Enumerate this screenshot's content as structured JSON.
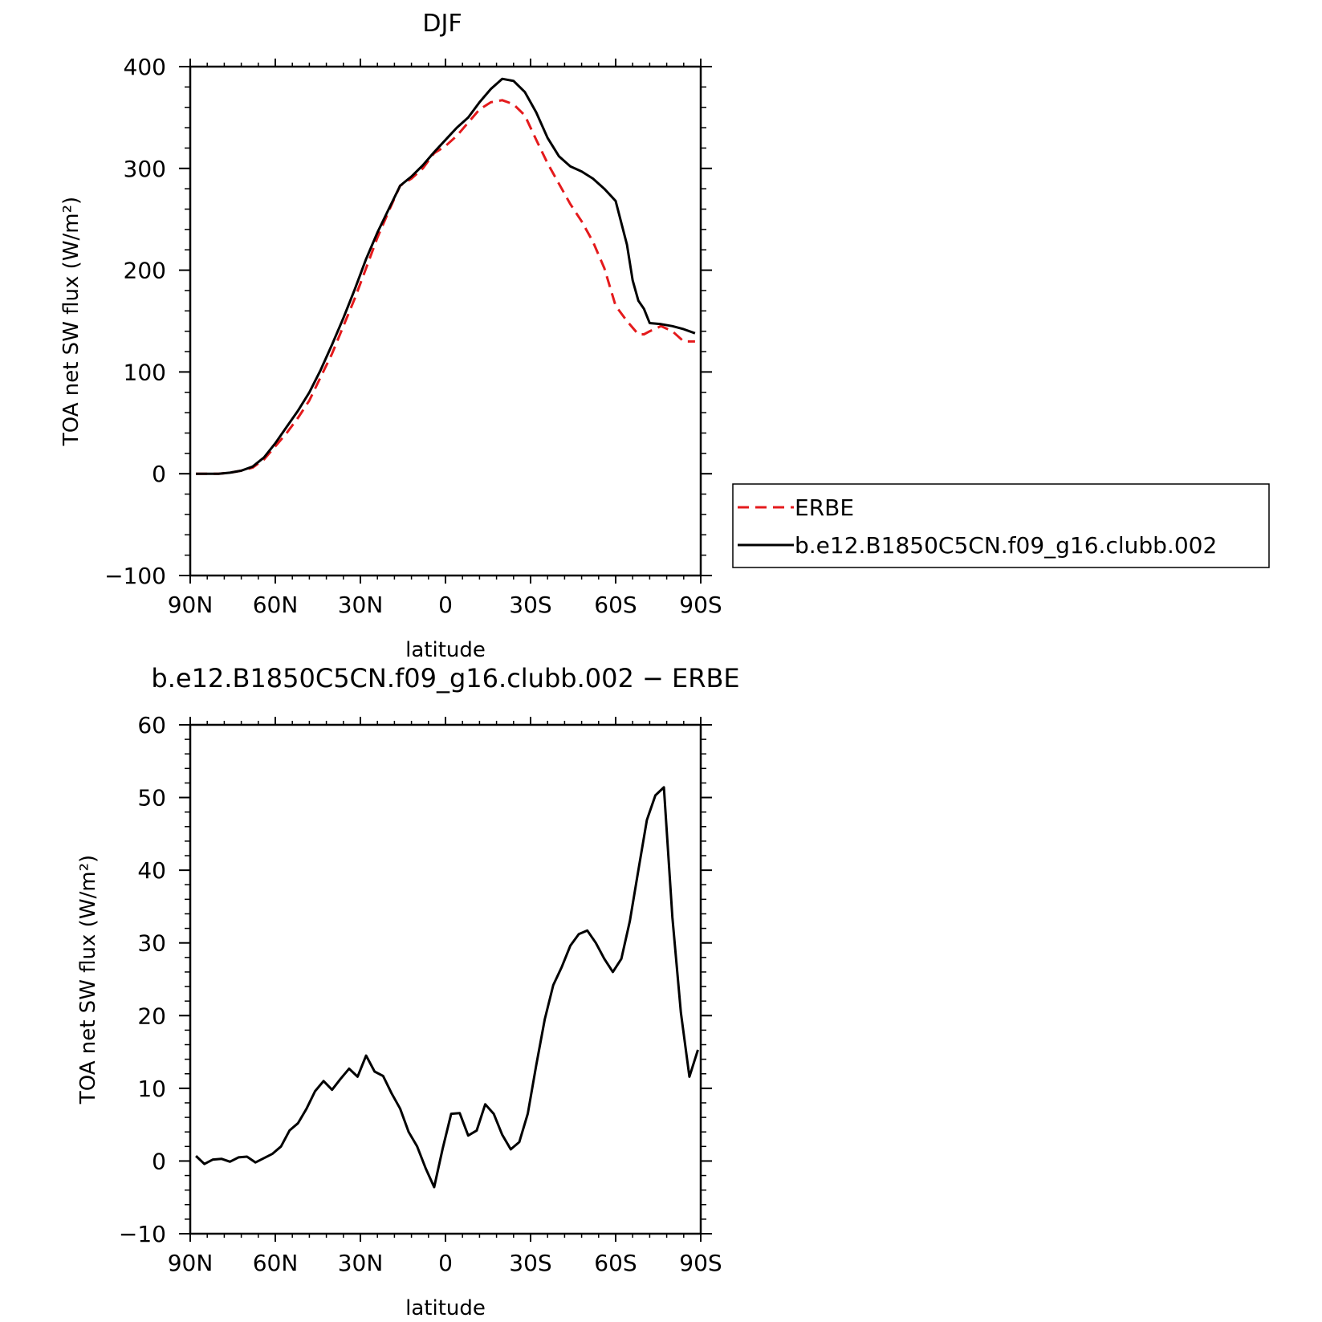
{
  "chart_data": [
    {
      "type": "line",
      "title": "DJF",
      "xlabel": "latitude",
      "ylabel": "TOA net SW flux (W/m²)",
      "xlim": [
        90,
        -90
      ],
      "ylim": [
        -100,
        400
      ],
      "x_ticks": [
        90,
        60,
        30,
        0,
        -30,
        -60,
        -90
      ],
      "x_tick_labels": [
        "90N",
        "60N",
        "30N",
        "0",
        "30S",
        "60S",
        "90S"
      ],
      "y_ticks": [
        -100,
        0,
        100,
        200,
        300,
        400
      ],
      "y_tick_labels": [
        "−100",
        "0",
        "100",
        "200",
        "300",
        "400"
      ],
      "legend_position": "right",
      "series": [
        {
          "name": "ERBE",
          "color": "#e41a1c",
          "dash": "dashed",
          "x": [
            88,
            84,
            80,
            76,
            72,
            68,
            64,
            60,
            56,
            52,
            48,
            44,
            40,
            36,
            32,
            28,
            24,
            20,
            16,
            12,
            8,
            4,
            0,
            -4,
            -8,
            -12,
            -16,
            -20,
            -24,
            -28,
            -32,
            -36,
            -40,
            -44,
            -48,
            -52,
            -56,
            -60,
            -64,
            -68,
            -70,
            -72,
            -76,
            -80,
            -84,
            -88
          ],
          "values": [
            0,
            0,
            0,
            1,
            3,
            6,
            14,
            27,
            40,
            55,
            72,
            95,
            118,
            145,
            172,
            202,
            232,
            258,
            283,
            290,
            300,
            315,
            322,
            332,
            345,
            358,
            365,
            367,
            363,
            352,
            328,
            305,
            285,
            265,
            248,
            228,
            202,
            165,
            150,
            137,
            137,
            140,
            145,
            140,
            130,
            130
          ]
        },
        {
          "name": "b.e12.B1850C5CN.f09_g16.clubb.002",
          "color": "#000000",
          "dash": "solid",
          "x": [
            88,
            84,
            80,
            76,
            72,
            68,
            64,
            60,
            56,
            52,
            48,
            44,
            40,
            36,
            32,
            28,
            24,
            20,
            16,
            12,
            8,
            4,
            0,
            -4,
            -8,
            -12,
            -16,
            -20,
            -24,
            -28,
            -32,
            -36,
            -40,
            -44,
            -48,
            -52,
            -56,
            -60,
            -64,
            -66,
            -68,
            -70,
            -72,
            -76,
            -80,
            -84,
            -88
          ],
          "values": [
            0,
            0,
            0,
            1,
            3,
            7,
            16,
            30,
            46,
            62,
            80,
            102,
            127,
            153,
            181,
            211,
            237,
            260,
            283,
            292,
            303,
            316,
            328,
            340,
            350,
            365,
            378,
            388,
            386,
            375,
            355,
            330,
            312,
            302,
            297,
            290,
            280,
            268,
            225,
            190,
            170,
            162,
            148,
            147,
            145,
            142,
            138
          ]
        }
      ]
    },
    {
      "type": "line",
      "title": "b.e12.B1850C5CN.f09_g16.clubb.002 − ERBE",
      "xlabel": "latitude",
      "ylabel": "TOA net SW flux (W/m²)",
      "xlim": [
        90,
        -90
      ],
      "ylim": [
        -10,
        60
      ],
      "x_ticks": [
        90,
        60,
        30,
        0,
        -30,
        -60,
        -90
      ],
      "x_tick_labels": [
        "90N",
        "60N",
        "30N",
        "0",
        "30S",
        "60S",
        "90S"
      ],
      "y_ticks": [
        -10,
        0,
        10,
        20,
        30,
        40,
        50,
        60
      ],
      "y_tick_labels": [
        "−10",
        "0",
        "10",
        "20",
        "30",
        "40",
        "50",
        "60"
      ],
      "series": [
        {
          "color": "#000000",
          "dash": "solid",
          "x": [
            88,
            85,
            82,
            79,
            76,
            73,
            70,
            67,
            64,
            61,
            58,
            55,
            52,
            49,
            46,
            43,
            40,
            37,
            34,
            31,
            28,
            25,
            22,
            19,
            16,
            13,
            10,
            7,
            4,
            1,
            -2,
            -5,
            -8,
            -11,
            -14,
            -17,
            -20,
            -23,
            -26,
            -29,
            -32,
            -35,
            -38,
            -41,
            -44,
            -47,
            -50,
            -53,
            -56,
            -59,
            -62,
            -65,
            -68,
            -71,
            -74,
            -77,
            -80,
            -83,
            -86,
            -89
          ],
          "values": [
            0.7,
            -0.4,
            0.2,
            0.3,
            -0.1,
            0.5,
            0.6,
            -0.2,
            0.4,
            1.0,
            2.0,
            4.2,
            5.2,
            7.2,
            9.6,
            11.0,
            9.8,
            11.3,
            12.7,
            11.6,
            14.5,
            12.3,
            11.7,
            9.3,
            7.2,
            4.0,
            2.0,
            -1.0,
            -3.6,
            1.7,
            6.5,
            6.6,
            3.5,
            4.2,
            7.8,
            6.5,
            3.6,
            1.6,
            2.6,
            6.5,
            13.2,
            19.5,
            24.2,
            26.7,
            29.6,
            31.2,
            31.7,
            30.0,
            27.8,
            26.0,
            27.8,
            33.0,
            40.0,
            46.9,
            50.3,
            51.4,
            33.5,
            20.4,
            11.6,
            15.3
          ]
        }
      ]
    }
  ],
  "legend": {
    "entries": [
      "ERBE",
      "b.e12.B1850C5CN.f09_g16.clubb.002"
    ]
  }
}
